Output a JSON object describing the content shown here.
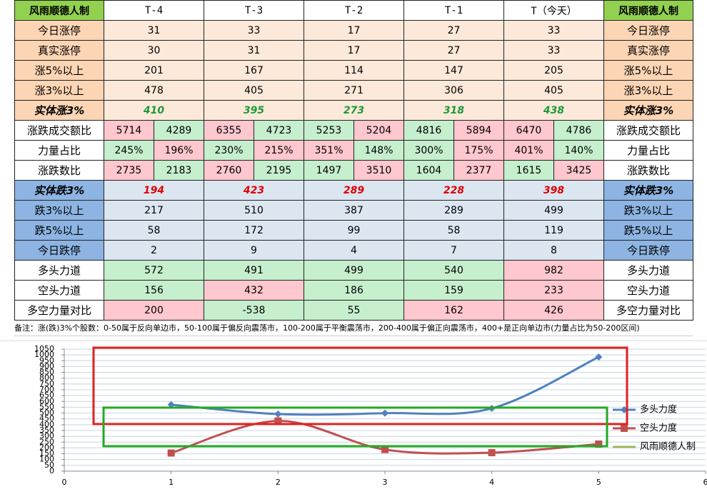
{
  "table": {
    "header": {
      "corner": "风雨顺德人制",
      "days": [
        "T-4",
        "T-3",
        "T-2",
        "T-1",
        "T（今天）"
      ]
    },
    "rows": [
      {
        "label": "今日涨停",
        "kind": "orange",
        "values": [
          "31",
          "33",
          "17",
          "27",
          "33"
        ]
      },
      {
        "label": "真实涨停",
        "kind": "orange",
        "values": [
          "30",
          "31",
          "17",
          "27",
          "33"
        ]
      },
      {
        "label": "涨5%以上",
        "kind": "orange",
        "values": [
          "201",
          "167",
          "114",
          "147",
          "205"
        ]
      },
      {
        "label": "涨3%以上",
        "kind": "orange",
        "values": [
          "478",
          "405",
          "271",
          "306",
          "405"
        ]
      },
      {
        "label": "实体涨3%",
        "kind": "orange",
        "emphasis": "#1a9a3a",
        "values": [
          "410",
          "395",
          "273",
          "318",
          "438"
        ]
      },
      {
        "label": "涨跌成交额比",
        "kind": "white",
        "values": [
          [
            "5714",
            "4289"
          ],
          [
            "6355",
            "4723"
          ],
          [
            "5253",
            "5204"
          ],
          [
            "4816",
            "5894"
          ],
          [
            "6470",
            "4786"
          ]
        ],
        "fills": [
          [
            "#ffc7ce",
            "#c6efce"
          ],
          [
            "#ffc7ce",
            "#c6efce"
          ],
          [
            "#c6efce",
            "#ffc7ce"
          ],
          [
            "#c6efce",
            "#ffc7ce"
          ],
          [
            "#ffc7ce",
            "#c6efce"
          ]
        ]
      },
      {
        "label": "力量占比",
        "kind": "white",
        "values": [
          [
            "245%",
            "196%"
          ],
          [
            "230%",
            "215%"
          ],
          [
            "351%",
            "148%"
          ],
          [
            "300%",
            "175%"
          ],
          [
            "401%",
            "140%"
          ]
        ],
        "fills": [
          [
            "#c6efce",
            "#ffc7ce"
          ],
          [
            "#c6efce",
            "#ffc7ce"
          ],
          [
            "#ffc7ce",
            "#c6efce"
          ],
          [
            "#c6efce",
            "#ffc7ce"
          ],
          [
            "#ffc7ce",
            "#c6efce"
          ]
        ]
      },
      {
        "label": "涨跌数比",
        "kind": "white",
        "values": [
          [
            "2735",
            "2183"
          ],
          [
            "2760",
            "2195"
          ],
          [
            "1497",
            "3510"
          ],
          [
            "1604",
            "2377"
          ],
          [
            "1615",
            "3425"
          ]
        ],
        "fills": [
          [
            "#ffc7ce",
            "#c6efce"
          ],
          [
            "#ffc7ce",
            "#c6efce"
          ],
          [
            "#c6efce",
            "#ffc7ce"
          ],
          [
            "#c6efce",
            "#ffc7ce"
          ],
          [
            "#c6efce",
            "#ffc7ce"
          ]
        ]
      },
      {
        "label": "实体跌3%",
        "kind": "blue",
        "emphasis": "#e00000",
        "values": [
          "194",
          "423",
          "289",
          "228",
          "398"
        ]
      },
      {
        "label": "跌3%以上",
        "kind": "blue",
        "values": [
          "217",
          "510",
          "387",
          "289",
          "499"
        ]
      },
      {
        "label": "跌5%以上",
        "kind": "blue",
        "values": [
          "58",
          "172",
          "99",
          "58",
          "119"
        ]
      },
      {
        "label": "今日跌停",
        "kind": "blue",
        "values": [
          "2",
          "9",
          "4",
          "7",
          "8"
        ]
      },
      {
        "label": "多头力道",
        "kind": "white",
        "values": [
          "572",
          "491",
          "499",
          "540",
          "982"
        ],
        "fills": [
          "#c6efce",
          "#c6efce",
          "#c6efce",
          "#c6efce",
          "#ffc7ce"
        ]
      },
      {
        "label": "空头力道",
        "kind": "white",
        "values": [
          "156",
          "432",
          "186",
          "159",
          "233"
        ],
        "fills": [
          "#c6efce",
          "#ffc7ce",
          "#c6efce",
          "#c6efce",
          "#ffc7ce"
        ]
      },
      {
        "label": "多空力量对比",
        "kind": "white",
        "values": [
          "200",
          "-538",
          "55",
          "162",
          "426"
        ],
        "fills": [
          "#ffc7ce",
          "#c6efce",
          "#c6efce",
          "#ffc7ce",
          "#ffc7ce"
        ]
      }
    ],
    "note": "备注：涨(跌)3%个股数：0-50属于反向单边市，50-100属于偏反向震荡市，100-200属于平衡震荡市，200-400属于偏正向震荡市，400+是正向单边市(力量占比为50-200区间)"
  },
  "chart_data": {
    "type": "line",
    "x": [
      1,
      2,
      3,
      4,
      5
    ],
    "xlim": [
      0,
      6
    ],
    "xticks": [
      0,
      1,
      2,
      3,
      4,
      5,
      6
    ],
    "ylim": [
      0,
      1050
    ],
    "yticks": [
      0,
      50,
      100,
      150,
      200,
      250,
      300,
      350,
      400,
      450,
      500,
      550,
      600,
      650,
      700,
      750,
      800,
      850,
      900,
      950,
      1000,
      1050
    ],
    "grid": true,
    "series": [
      {
        "name": "多头力度",
        "color": "#4f81bd",
        "marker": "diamond",
        "values": [
          572,
          491,
          499,
          540,
          982
        ]
      },
      {
        "name": "空头力度",
        "color": "#c0504d",
        "marker": "square",
        "values": [
          156,
          432,
          186,
          159,
          233
        ]
      },
      {
        "name": "风雨顺德人制",
        "color": "#9bbb59",
        "values": [
          null,
          null,
          null,
          null,
          null
        ]
      }
    ]
  }
}
